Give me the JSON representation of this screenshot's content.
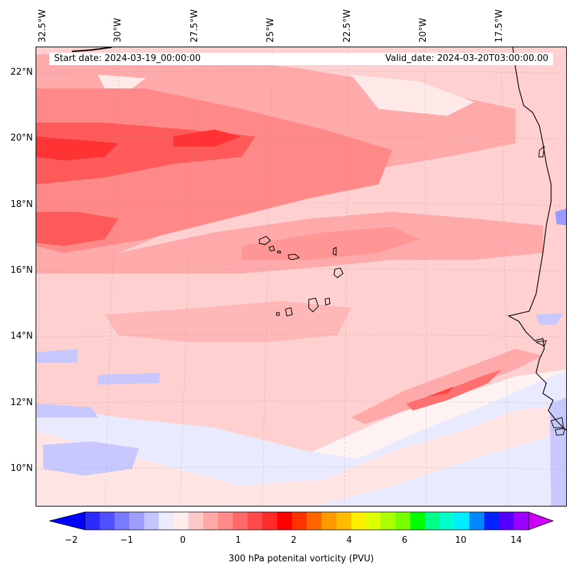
{
  "header": {
    "start_date": "Start date: 2024-03-19_00:00:00",
    "valid_date": "Valid_date: 2024-03-20T03:00:00.00"
  },
  "axes": {
    "longitude_labels": [
      "32.5°W",
      "30°W",
      "27.5°W",
      "25°W",
      "22.5°W",
      "20°W",
      "17.5°W"
    ],
    "latitude_labels": [
      "22°N",
      "20°N",
      "18°N",
      "16°N",
      "14°N",
      "12°N",
      "10°N"
    ]
  },
  "colorbar": {
    "title": "300 hPa potenital vorticity (PVU)",
    "tick_labels": [
      "−2",
      "−1",
      "0",
      "1",
      "2",
      "4",
      "6",
      "10",
      "14"
    ],
    "colors": [
      "#0000ff",
      "#2a2aff",
      "#5050ff",
      "#7a7aff",
      "#9e9eff",
      "#c4c4ff",
      "#ebebff",
      "#ffecec",
      "#ffc8c8",
      "#ffa8a8",
      "#ff8a8a",
      "#ff6a6a",
      "#ff4a4a",
      "#ff2a2a",
      "#ff0000",
      "#ff3300",
      "#ff6600",
      "#ff9900",
      "#ffbb00",
      "#ffee00",
      "#ddff00",
      "#aaff00",
      "#77ff00",
      "#00ff00",
      "#00ff88",
      "#00ffcc",
      "#00eeff",
      "#0088ff",
      "#0022ff",
      "#5500ff",
      "#9900ff",
      "#cc00ff"
    ]
  },
  "fill_colors": {
    "background": "#fff2f2",
    "light_pink": "#ffd0d0",
    "pink": "#ffaaaa",
    "salmon": "#ff8888",
    "red": "#ff5a5a",
    "deep_red": "#ff3333",
    "light_blue": "#eaeaff",
    "blue": "#c8c8ff",
    "mid_blue": "#9a9aff",
    "coastline": "#000000"
  }
}
